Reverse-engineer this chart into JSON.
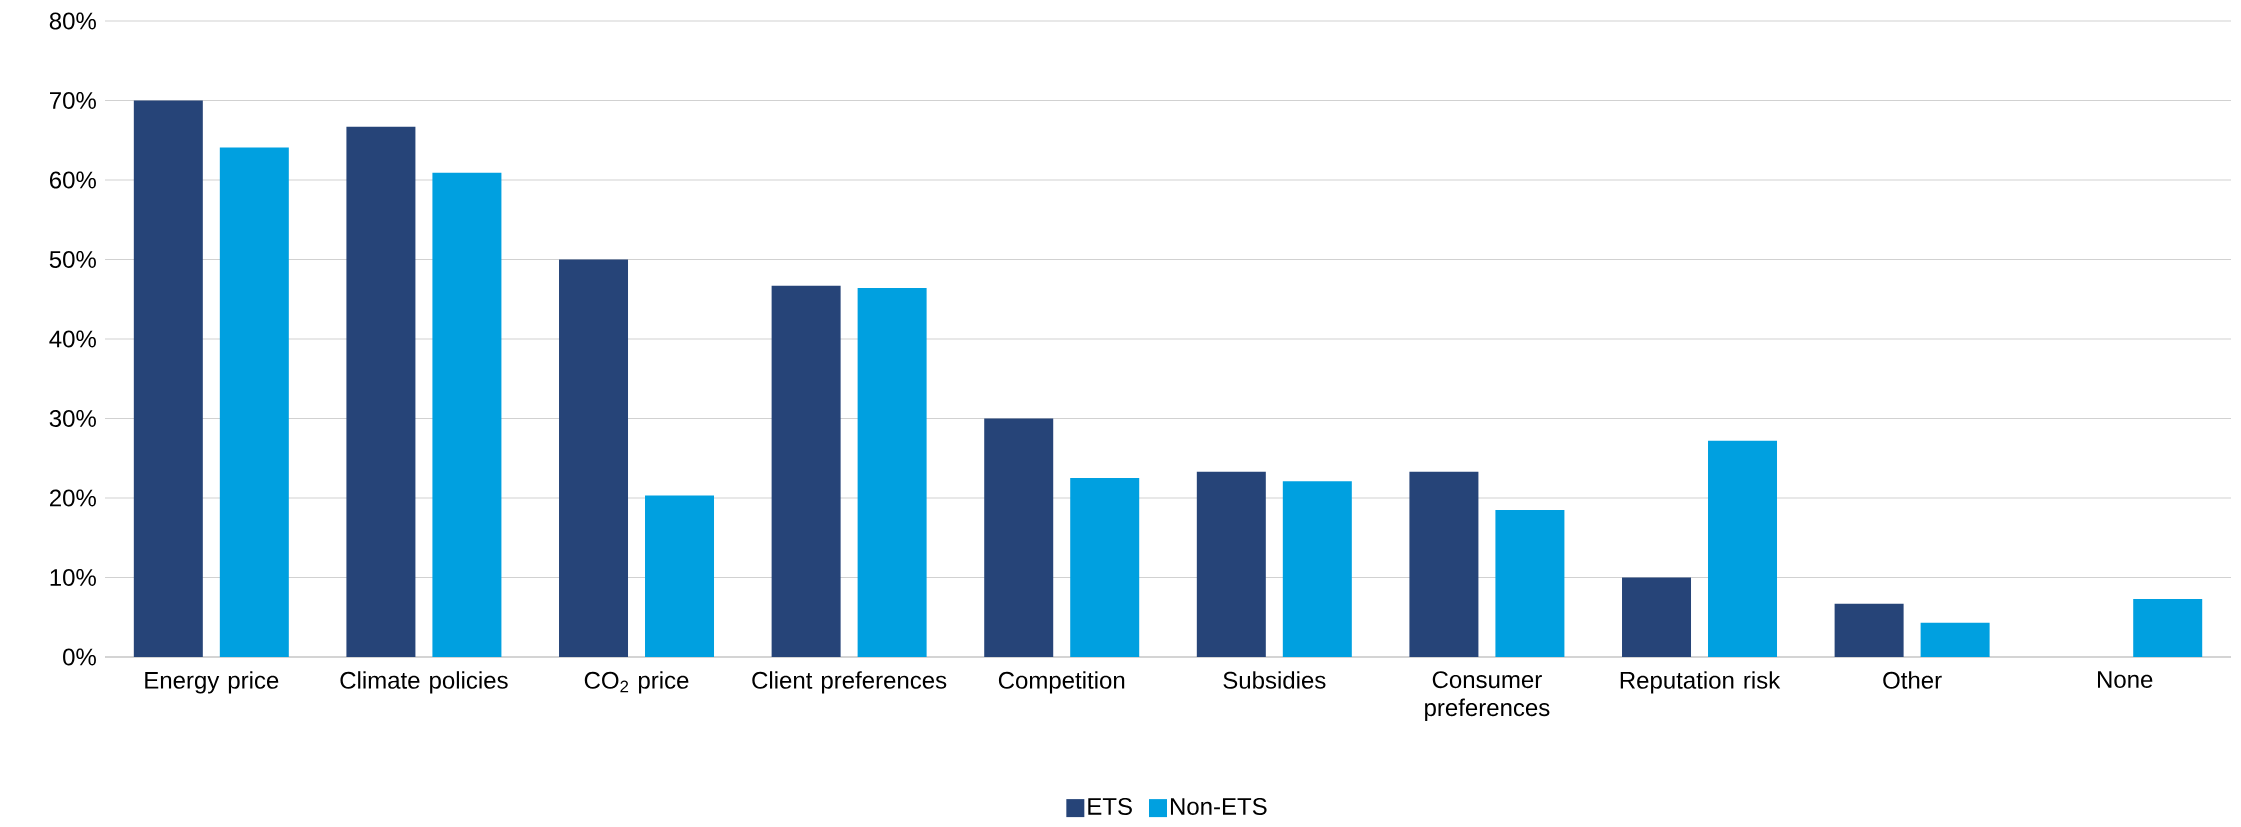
{
  "chart_data": {
    "type": "bar",
    "categories": [
      "Energy price",
      "Climate policies",
      "CO$_{2}$ price",
      "Client preferences",
      "Competition",
      "Subsidies",
      "Consumer preferences",
      "Reputation risk",
      "Other",
      "None"
    ],
    "series": [
      {
        "name": "ETS",
        "color": "#264478",
        "values": [
          70,
          66.7,
          50,
          46.7,
          30,
          23.3,
          23.3,
          10,
          6.7,
          0
        ]
      },
      {
        "name": "Non-ETS",
        "color": "#00a0e0",
        "values": [
          64.1,
          60.9,
          20.3,
          46.4,
          22.5,
          22.1,
          18.5,
          27.2,
          4.3,
          7.3
        ]
      }
    ],
    "ylim": [
      0,
      80
    ],
    "yticks": [
      {
        "value": 0,
        "label": "0%"
      },
      {
        "value": 10,
        "label": "10%"
      },
      {
        "value": 20,
        "label": "20%"
      },
      {
        "value": 30,
        "label": "30%"
      },
      {
        "value": 40,
        "label": "40%"
      },
      {
        "value": 50,
        "label": "50%"
      },
      {
        "value": 60,
        "label": "60%"
      },
      {
        "value": 70,
        "label": "70%"
      },
      {
        "value": 80,
        "label": "80%"
      }
    ],
    "grid": "y",
    "legend": "bottom"
  }
}
